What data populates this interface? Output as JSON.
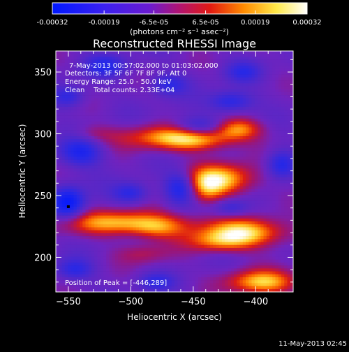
{
  "colorbar": {
    "tick_labels": [
      "-0.00032",
      "-0.00019",
      "-6.5e-05",
      "6.5e-05",
      "0.00019",
      "0.00032"
    ],
    "tick_values": [
      -0.00032,
      -0.00019,
      -6.5e-05,
      6.5e-05,
      0.00019,
      0.00032
    ],
    "range": [
      -0.00032,
      0.00032
    ],
    "unit_label": "(photons cm⁻² s⁻¹ asec⁻²)",
    "colors": [
      "#0018ff",
      "#6a1bd0",
      "#b21470",
      "#e21a12",
      "#ff8a00",
      "#ffe94a",
      "#ffffff"
    ]
  },
  "chart_data": {
    "type": "heatmap",
    "title": "Reconstructed RHESSI Image",
    "xlabel": "Heliocentric X (arcsec)",
    "ylabel": "Heliocentric Y (arcsec)",
    "xlim": [
      -560,
      -370
    ],
    "ylim": [
      172,
      367
    ],
    "x_ticks": [
      -550,
      -500,
      -450,
      -400
    ],
    "x_tick_labels": [
      "−550",
      "−500",
      "−450",
      "−400"
    ],
    "y_ticks": [
      200,
      250,
      300,
      350
    ],
    "y_tick_labels": [
      "200",
      "250",
      "300",
      "350"
    ],
    "info_lines": [
      "7-May-2013 00:57:02.000 to 01:03:02.000",
      "Detectors: 3F 5F 6F 7F 8F 9F, Att 0",
      "Energy Range: 25.0 - 50.0 keV",
      "Clean    Total counts: 2.33E+04"
    ],
    "peak_label": "Position of Peak = [-446,289]",
    "peak": [
      -446,
      289
    ],
    "marker": [
      -550,
      241
    ],
    "blobs": [
      {
        "x": -465,
        "y": 297,
        "sx": 30,
        "sy": 7,
        "a": 0.75
      },
      {
        "x": -445,
        "y": 295,
        "sx": 18,
        "sy": 6,
        "a": 0.35
      },
      {
        "x": -415,
        "y": 304,
        "sx": 14,
        "sy": 6,
        "a": 0.65
      },
      {
        "x": -430,
        "y": 263,
        "sx": 20,
        "sy": 9,
        "a": 0.9
      },
      {
        "x": -440,
        "y": 253,
        "sx": 10,
        "sy": 8,
        "a": 0.35
      },
      {
        "x": -505,
        "y": 228,
        "sx": 35,
        "sy": 7,
        "a": 0.8
      },
      {
        "x": -480,
        "y": 222,
        "sx": 15,
        "sy": 6,
        "a": 0.3
      },
      {
        "x": -410,
        "y": 220,
        "sx": 25,
        "sy": 8,
        "a": 0.85
      },
      {
        "x": -430,
        "y": 212,
        "sx": 18,
        "sy": 6,
        "a": 0.45
      },
      {
        "x": -395,
        "y": 180,
        "sx": 20,
        "sy": 7,
        "a": 0.8
      },
      {
        "x": -490,
        "y": 203,
        "sx": 15,
        "sy": 6,
        "a": 0.3
      },
      {
        "x": -530,
        "y": 300,
        "sx": 12,
        "sy": 5,
        "a": 0.2
      },
      {
        "x": -460,
        "y": 257,
        "sx": 9,
        "sy": 9,
        "a": -0.75
      },
      {
        "x": -550,
        "y": 244,
        "sx": 9,
        "sy": 9,
        "a": -0.85
      },
      {
        "x": -540,
        "y": 285,
        "sx": 12,
        "sy": 8,
        "a": -0.6
      },
      {
        "x": -445,
        "y": 305,
        "sx": 15,
        "sy": 6,
        "a": -0.55
      },
      {
        "x": -500,
        "y": 252,
        "sx": 10,
        "sy": 6,
        "a": -0.5
      },
      {
        "x": -420,
        "y": 326,
        "sx": 12,
        "sy": 6,
        "a": -0.55
      },
      {
        "x": -470,
        "y": 340,
        "sx": 10,
        "sy": 6,
        "a": -0.45
      },
      {
        "x": -520,
        "y": 355,
        "sx": 12,
        "sy": 6,
        "a": -0.5
      },
      {
        "x": -380,
        "y": 275,
        "sx": 8,
        "sy": 8,
        "a": -0.55
      },
      {
        "x": -420,
        "y": 240,
        "sx": 10,
        "sy": 5,
        "a": -0.4
      },
      {
        "x": -545,
        "y": 190,
        "sx": 10,
        "sy": 6,
        "a": -0.45
      },
      {
        "x": -480,
        "y": 180,
        "sx": 10,
        "sy": 5,
        "a": -0.4
      },
      {
        "x": -410,
        "y": 350,
        "sx": 10,
        "sy": 6,
        "a": -0.4
      },
      {
        "x": -550,
        "y": 330,
        "sx": 9,
        "sy": 6,
        "a": -0.45
      }
    ]
  },
  "footer": {
    "timestamp": "11-May-2013 02:45"
  }
}
